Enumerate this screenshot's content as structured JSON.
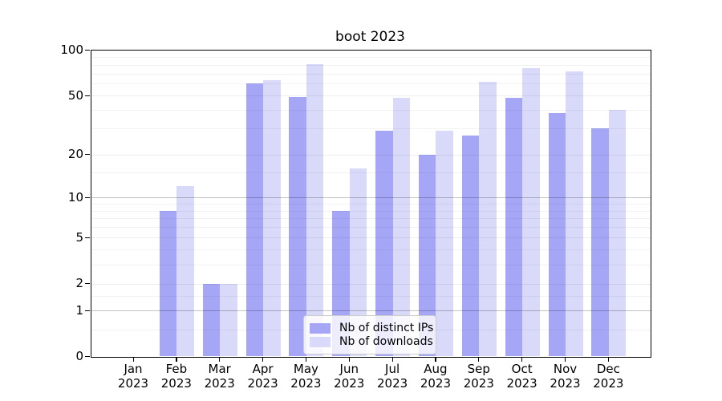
{
  "chart_data": {
    "type": "bar",
    "title": "boot 2023",
    "x_categories": [
      "Jan",
      "Feb",
      "Mar",
      "Apr",
      "May",
      "Jun",
      "Jul",
      "Aug",
      "Sep",
      "Oct",
      "Nov",
      "Dec"
    ],
    "x_year": "2023",
    "series": [
      {
        "name": "Nb of distinct IPs",
        "color": "#a6a6f7",
        "values": [
          0,
          8,
          2,
          60,
          49,
          8,
          29,
          20,
          27,
          48,
          38,
          30
        ]
      },
      {
        "name": "Nb of downloads",
        "color": "#d9d9f9",
        "values": [
          0,
          12,
          2,
          63,
          81,
          16,
          48,
          29,
          62,
          76,
          72,
          40
        ]
      }
    ],
    "y_scale": "log1p",
    "ylim": [
      0,
      100
    ],
    "y_ticks": [
      0,
      1,
      2,
      5,
      10,
      20,
      50,
      100
    ],
    "y_emphasized_gridlines": [
      1,
      10
    ],
    "y_minor_gridlines": [
      0.5,
      1.5,
      3,
      4,
      6,
      7,
      8,
      9,
      15,
      30,
      40,
      60,
      70,
      80,
      90
    ],
    "grid": true,
    "legend_position": "lower-center-inside"
  }
}
